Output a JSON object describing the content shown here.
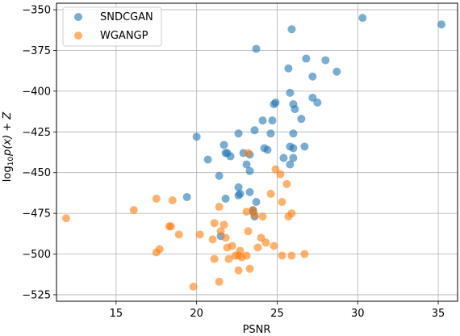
{
  "chart_data": {
    "type": "scatter",
    "xlabel": "PSNR",
    "ylabel_parts": [
      "log",
      "10",
      "p(x) + Z"
    ],
    "xlim": [
      11.3,
      36.2
    ],
    "ylim": [
      -529,
      -346
    ],
    "xticks": [
      15,
      20,
      25,
      30,
      35
    ],
    "yticks": [
      -350,
      -375,
      -400,
      -425,
      -450,
      -475,
      -500,
      -525
    ],
    "grid": true,
    "legend": "top-left",
    "series": [
      {
        "name": "SNDCGAN",
        "color": "#1f77b4",
        "points": [
          [
            30.3,
            -355
          ],
          [
            35.2,
            -359
          ],
          [
            25.9,
            -362
          ],
          [
            23.7,
            -374
          ],
          [
            26.8,
            -380
          ],
          [
            28.0,
            -381
          ],
          [
            25.7,
            -386
          ],
          [
            28.7,
            -388
          ],
          [
            27.2,
            -391
          ],
          [
            25.8,
            -401
          ],
          [
            27.2,
            -404
          ],
          [
            27.5,
            -407
          ],
          [
            24.9,
            -407
          ],
          [
            24.8,
            -408
          ],
          [
            26.0,
            -408
          ],
          [
            26.1,
            -411
          ],
          [
            26.5,
            -417
          ],
          [
            24.1,
            -418
          ],
          [
            24.7,
            -418
          ],
          [
            23.6,
            -424
          ],
          [
            22.6,
            -426
          ],
          [
            26.0,
            -426
          ],
          [
            24.6,
            -426
          ],
          [
            20.0,
            -428
          ],
          [
            21.7,
            -433
          ],
          [
            24.2,
            -435
          ],
          [
            24.4,
            -436
          ],
          [
            25.8,
            -434
          ],
          [
            26.7,
            -434
          ],
          [
            26.0,
            -435
          ],
          [
            21.8,
            -438
          ],
          [
            21.9,
            -438
          ],
          [
            22.1,
            -440
          ],
          [
            23.3,
            -439
          ],
          [
            22.9,
            -438
          ],
          [
            25.4,
            -441
          ],
          [
            26.0,
            -441
          ],
          [
            20.7,
            -442
          ],
          [
            23.1,
            -445
          ],
          [
            25.8,
            -445
          ],
          [
            23.3,
            -449
          ],
          [
            21.4,
            -452
          ],
          [
            22.6,
            -459
          ],
          [
            23.3,
            -462
          ],
          [
            22.7,
            -463
          ],
          [
            22.6,
            -464
          ],
          [
            21.8,
            -466
          ],
          [
            19.4,
            -465
          ],
          [
            23.7,
            -468
          ],
          [
            23.5,
            -473
          ],
          [
            21.5,
            -489
          ],
          [
            23.6,
            -477
          ],
          [
            23.5,
            -474
          ]
        ]
      },
      {
        "name": "WGANGP",
        "color": "#ff7f0e",
        "points": [
          [
            11.9,
            -478
          ],
          [
            16.1,
            -473
          ],
          [
            17.5,
            -466
          ],
          [
            18.5,
            -467
          ],
          [
            18.3,
            -483
          ],
          [
            18.4,
            -483
          ],
          [
            18.9,
            -488
          ],
          [
            17.5,
            -499
          ],
          [
            17.7,
            -497
          ],
          [
            19.8,
            -520
          ],
          [
            20.2,
            -488
          ],
          [
            21.0,
            -491
          ],
          [
            21.1,
            -481
          ],
          [
            21.4,
            -471
          ],
          [
            21.7,
            -482
          ],
          [
            21.5,
            -486
          ],
          [
            21.8,
            -490
          ],
          [
            21.1,
            -503
          ],
          [
            21.9,
            -496
          ],
          [
            22.0,
            -503
          ],
          [
            22.2,
            -495
          ],
          [
            22.4,
            -501
          ],
          [
            22.6,
            -501
          ],
          [
            22.6,
            -510
          ],
          [
            22.7,
            -498
          ],
          [
            22.8,
            -502
          ],
          [
            23.1,
            -501
          ],
          [
            23.2,
            -486
          ],
          [
            23.1,
            -474
          ],
          [
            23.2,
            -438
          ],
          [
            23.3,
            -509
          ],
          [
            23.5,
            -473
          ],
          [
            23.6,
            -476
          ],
          [
            23.8,
            -496
          ],
          [
            24.0,
            -490
          ],
          [
            24.1,
            -477
          ],
          [
            24.3,
            -493
          ],
          [
            24.6,
            -463
          ],
          [
            24.8,
            -495
          ],
          [
            24.9,
            -448
          ],
          [
            25.2,
            -451
          ],
          [
            25.3,
            -468
          ],
          [
            25.6,
            -457
          ],
          [
            25.7,
            -477
          ],
          [
            25.9,
            -475
          ],
          [
            26.7,
            -500
          ],
          [
            25.9,
            -501
          ],
          [
            25.3,
            -501
          ],
          [
            21.4,
            -517
          ]
        ]
      }
    ]
  }
}
